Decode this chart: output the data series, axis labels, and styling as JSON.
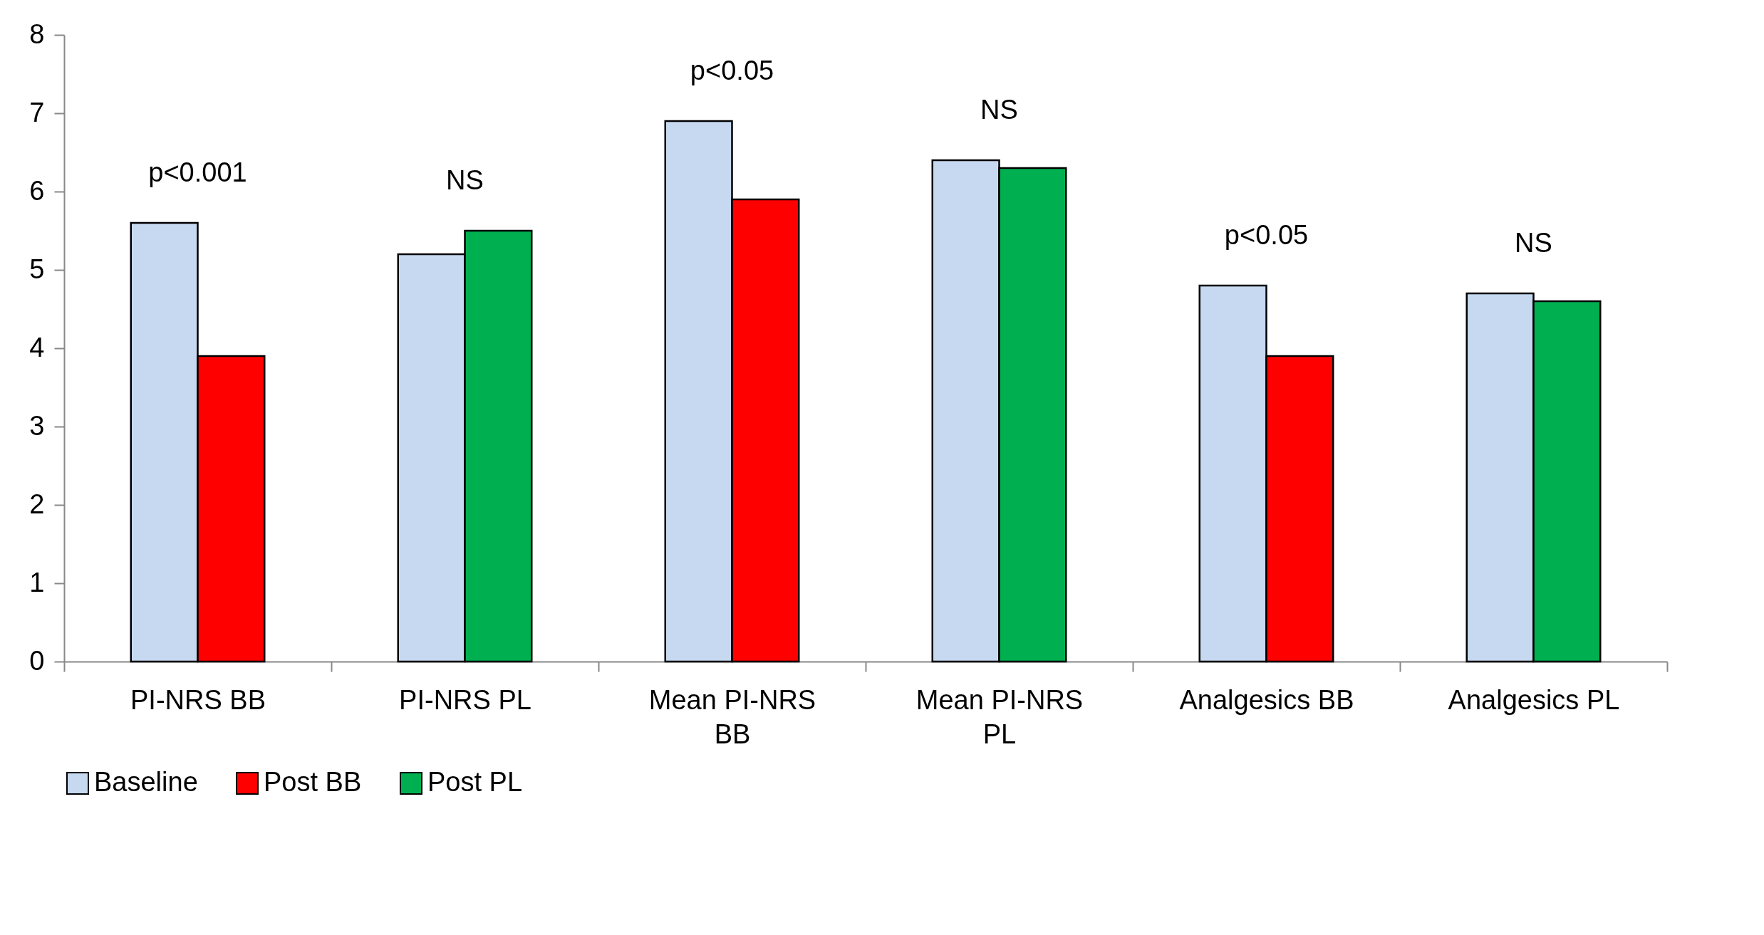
{
  "chart_data": {
    "type": "bar",
    "categories": [
      "PI-NRS BB",
      "PI-NRS PL",
      "Mean PI-NRS BB",
      "Mean PI-NRS PL",
      "Analgesics BB",
      "Analgesics PL"
    ],
    "series": [
      {
        "name": "Baseline",
        "color": "#c6d9f1",
        "values": [
          5.6,
          5.2,
          6.9,
          6.4,
          4.8,
          4.7
        ]
      },
      {
        "name": "Post BB",
        "color": "#ff0000",
        "values": [
          3.9,
          null,
          5.9,
          null,
          3.9,
          null
        ]
      },
      {
        "name": "Post PL",
        "color": "#00b050",
        "values": [
          null,
          5.5,
          null,
          6.3,
          null,
          4.6
        ]
      }
    ],
    "ylim": [
      0,
      8
    ],
    "yticks": [
      0,
      1,
      2,
      3,
      4,
      5,
      6,
      7,
      8
    ],
    "annotations": [
      "p<0.001",
      "NS",
      "p<0.05",
      "NS",
      "p<0.05",
      "NS"
    ],
    "grid": false,
    "legend": "bottom"
  }
}
